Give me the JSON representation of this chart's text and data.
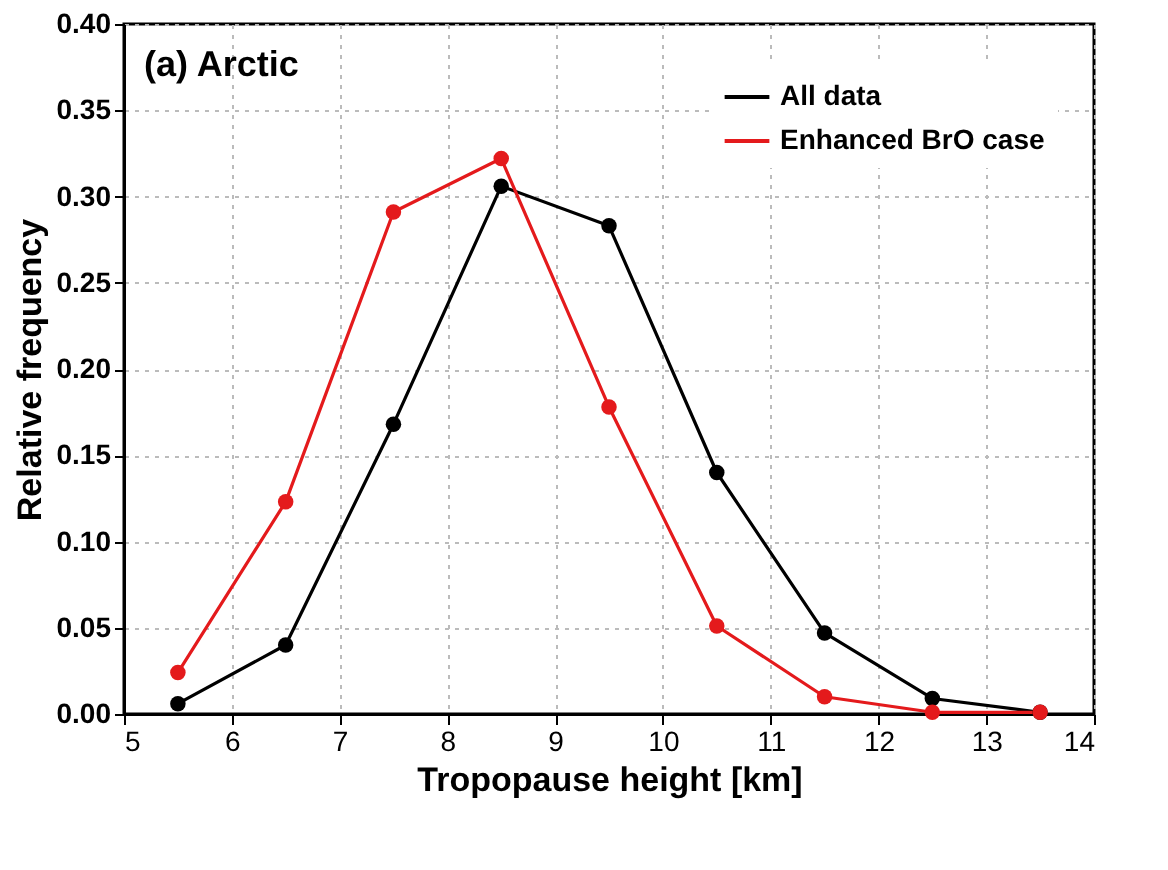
{
  "chart_data": {
    "type": "line",
    "xlabel": "Tropopause height [km]",
    "ylabel": "Relative frequency",
    "annotations": [
      "(a) Arctic"
    ],
    "x": [
      5.5,
      6.5,
      7.5,
      8.5,
      9.5,
      10.5,
      11.5,
      12.5,
      13.5
    ],
    "series": [
      {
        "name": "All data",
        "color": "#000000",
        "values": [
          0.006,
          0.04,
          0.168,
          0.306,
          0.283,
          0.14,
          0.047,
          0.009,
          0.001
        ]
      },
      {
        "name": "Enhanced BrO case",
        "color": "#e41a1c",
        "values": [
          0.024,
          0.123,
          0.291,
          0.322,
          0.178,
          0.051,
          0.01,
          0.001,
          0.001
        ]
      }
    ],
    "xlim": [
      5,
      14
    ],
    "xticks": [
      5,
      6,
      7,
      8,
      9,
      10,
      11,
      12,
      13,
      14
    ],
    "ylim": [
      0,
      0.4
    ],
    "yticks": [
      {
        "value": 0,
        "label": "0.00"
      },
      {
        "value": 0.05,
        "label": "0.05"
      },
      {
        "value": 0.1,
        "label": "0.10"
      },
      {
        "value": 0.15,
        "label": "0.15"
      },
      {
        "value": 0.2,
        "label": "0.20"
      },
      {
        "value": 0.25,
        "label": "0.25"
      },
      {
        "value": 0.3,
        "label": "0.30"
      },
      {
        "value": 0.35,
        "label": "0.35"
      },
      {
        "value": 0.4,
        "label": "0.40"
      }
    ],
    "grid": true,
    "legend": "top right",
    "marker": "circle",
    "line_style": "solid"
  }
}
